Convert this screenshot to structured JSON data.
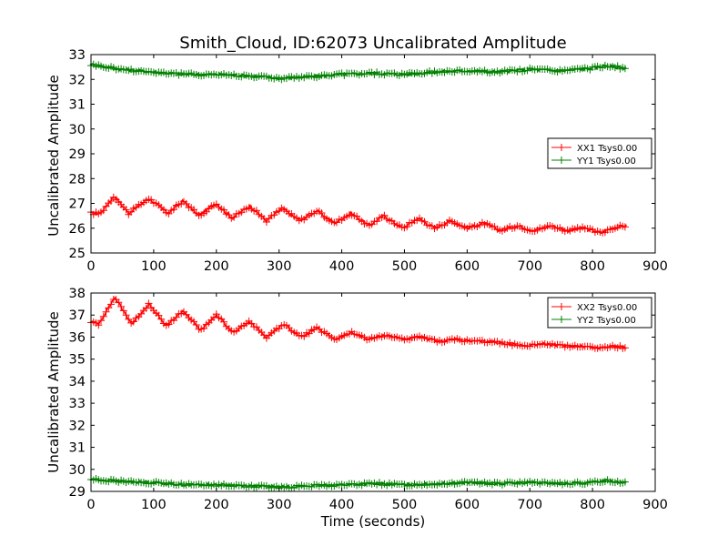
{
  "chart_data": [
    {
      "type": "line",
      "title": "Smith_Cloud, ID:62073 Uncalibrated Amplitude",
      "xlabel": "",
      "ylabel": "Uncalibrated Amplitude",
      "xlim": [
        0,
        900
      ],
      "ylim": [
        25,
        33
      ],
      "xticks": [
        "0",
        "100",
        "200",
        "300",
        "400",
        "500",
        "600",
        "700",
        "800",
        "900"
      ],
      "yticks": [
        "25",
        "26",
        "27",
        "28",
        "29",
        "30",
        "31",
        "32",
        "33"
      ],
      "grid": false,
      "legend": "center-right",
      "marker": "+",
      "series": [
        {
          "name": "XX1 Tsys0.00",
          "color": "#ff0000",
          "x": [
            0,
            15,
            37,
            60,
            92,
            123,
            147,
            172,
            200,
            225,
            253,
            280,
            305,
            333,
            360,
            388,
            415,
            443,
            467,
            497,
            522,
            548,
            573,
            600,
            627,
            653,
            680,
            707,
            733,
            760,
            787,
            813,
            830,
            855
          ],
          "y": [
            26.6,
            26.6,
            27.3,
            26.6,
            27.2,
            26.6,
            27.1,
            26.5,
            27.0,
            26.4,
            26.9,
            26.3,
            26.8,
            26.3,
            26.7,
            26.2,
            26.6,
            26.1,
            26.5,
            26.0,
            26.4,
            26.0,
            26.3,
            26.0,
            26.2,
            25.9,
            26.1,
            25.9,
            26.1,
            25.9,
            26.0,
            25.8,
            26.0,
            26.1
          ]
        },
        {
          "name": "YY1 Tsys0.00",
          "color": "#008000",
          "x": [
            0,
            50,
            100,
            150,
            200,
            250,
            300,
            350,
            400,
            450,
            500,
            550,
            600,
            650,
            700,
            750,
            800,
            820,
            855
          ],
          "y": [
            32.6,
            32.4,
            32.3,
            32.2,
            32.2,
            32.15,
            32.05,
            32.1,
            32.2,
            32.25,
            32.2,
            32.3,
            32.35,
            32.3,
            32.4,
            32.35,
            32.45,
            32.55,
            32.45
          ]
        }
      ]
    },
    {
      "type": "line",
      "title": "",
      "xlabel": "Time (seconds)",
      "ylabel": "Uncalibrated Amplitude",
      "xlim": [
        0,
        900
      ],
      "ylim": [
        29,
        38
      ],
      "xticks": [
        "0",
        "100",
        "200",
        "300",
        "400",
        "500",
        "600",
        "700",
        "800",
        "900"
      ],
      "yticks": [
        "29",
        "30",
        "31",
        "32",
        "33",
        "34",
        "35",
        "36",
        "37",
        "38"
      ],
      "grid": false,
      "legend": "top-right",
      "marker": "+",
      "series": [
        {
          "name": "XX2 Tsys0.00",
          "color": "#ff0000",
          "x": [
            0,
            12,
            38,
            65,
            92,
            120,
            147,
            175,
            200,
            228,
            253,
            280,
            307,
            335,
            360,
            390,
            415,
            443,
            470,
            500,
            525,
            555,
            580,
            610,
            640,
            665,
            690,
            720,
            750,
            780,
            810,
            830,
            855
          ],
          "y": [
            36.7,
            36.6,
            37.8,
            36.6,
            37.5,
            36.5,
            37.2,
            36.3,
            37.0,
            36.2,
            36.7,
            36.0,
            36.6,
            36.0,
            36.4,
            35.9,
            36.2,
            35.9,
            36.1,
            35.9,
            36.0,
            35.8,
            35.9,
            35.8,
            35.8,
            35.7,
            35.6,
            35.7,
            35.6,
            35.6,
            35.5,
            35.6,
            35.5
          ]
        },
        {
          "name": "YY2 Tsys0.00",
          "color": "#008000",
          "x": [
            0,
            50,
            100,
            150,
            200,
            250,
            300,
            350,
            400,
            450,
            500,
            550,
            600,
            650,
            700,
            750,
            800,
            820,
            855
          ],
          "y": [
            29.55,
            29.45,
            29.4,
            29.3,
            29.3,
            29.25,
            29.2,
            29.25,
            29.3,
            29.35,
            29.3,
            29.35,
            29.4,
            29.35,
            29.4,
            29.35,
            29.4,
            29.5,
            29.4
          ]
        }
      ]
    }
  ]
}
